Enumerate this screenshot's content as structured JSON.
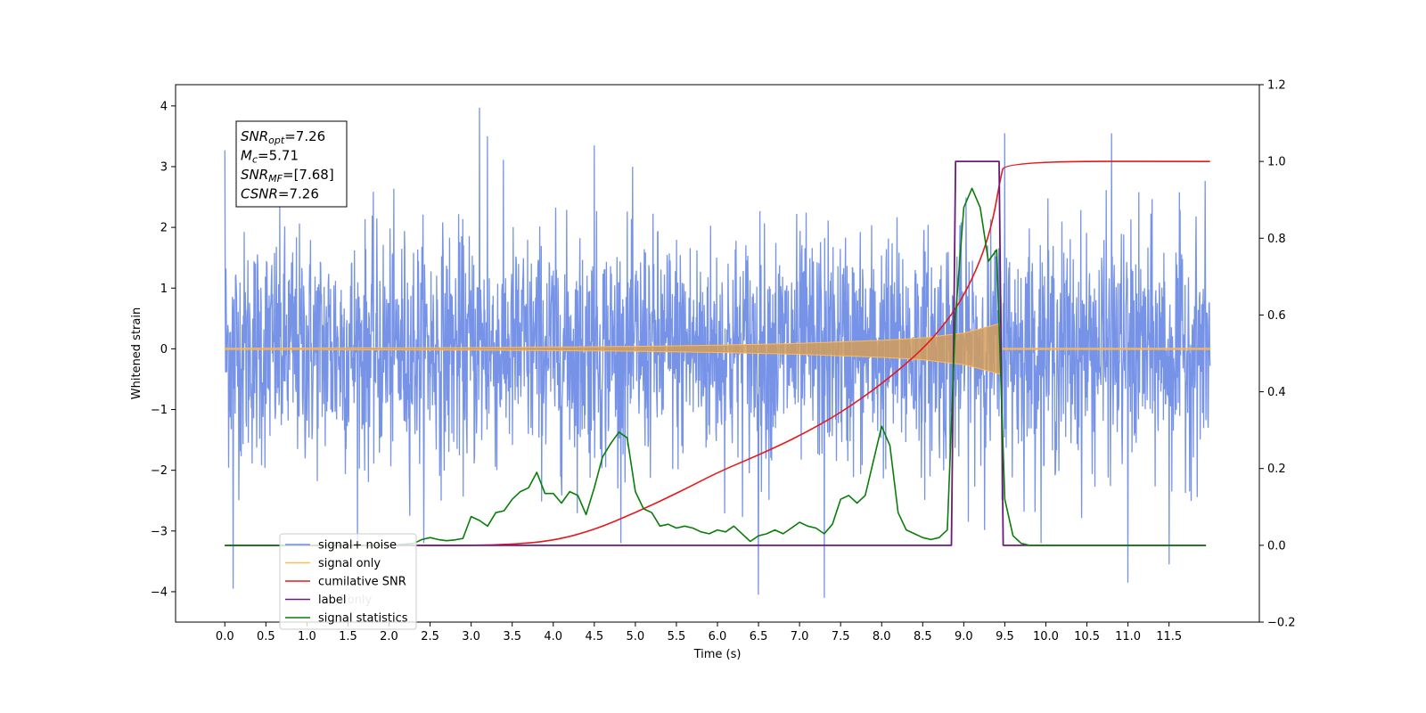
{
  "chart_data": {
    "type": "line",
    "title": "",
    "xlabel": "Time (s)",
    "ylabel": "Whitened strain",
    "xlim": [
      -0.6,
      12.6
    ],
    "ylim": [
      -4.5,
      4.35
    ],
    "y2lim": [
      -0.2,
      1.2
    ],
    "x_ticks": [
      0.0,
      0.5,
      1.0,
      1.5,
      2.0,
      2.5,
      3.0,
      3.5,
      4.0,
      4.5,
      5.0,
      5.5,
      6.0,
      6.5,
      7.0,
      7.5,
      8.0,
      8.5,
      9.0,
      9.5,
      10.0,
      10.5,
      11.0,
      11.5
    ],
    "x_tick_labels": [
      "0.0",
      "0.5",
      "1.0",
      "1.5",
      "2.0",
      "2.5",
      "3.0",
      "3.5",
      "4.0",
      "4.5",
      "5.0",
      "5.5",
      "6.0",
      "6.5",
      "7.0",
      "7.5",
      "8.0",
      "8.5",
      "9.0",
      "9.5",
      "10.0",
      "10.5",
      "11.0",
      "11.5"
    ],
    "y_ticks": [
      -4,
      -3,
      -2,
      -1,
      0,
      1,
      2,
      3,
      4
    ],
    "y_tick_labels": [
      "−4",
      "−3",
      "−2",
      "−1",
      "0",
      "1",
      "2",
      "3",
      "4"
    ],
    "y2_ticks": [
      -0.2,
      0.0,
      0.2,
      0.4,
      0.6,
      0.8,
      1.0,
      1.2
    ],
    "y2_tick_labels": [
      "−0.2",
      "0.0",
      "0.2",
      "0.4",
      "0.6",
      "0.8",
      "1.0",
      "1.2"
    ],
    "grid": false,
    "legend_position": "lower-left",
    "annotation": {
      "lines": [
        {
          "base": "SNR",
          "sub": "opt",
          "rest": "=7.26"
        },
        {
          "base": "M",
          "sub": "c",
          "rest": "=5.71"
        },
        {
          "base": "SNR",
          "sub": "MF",
          "rest": "=[7.68]"
        },
        {
          "base": "CSNR",
          "sub": "",
          "rest": "=7.26"
        }
      ]
    },
    "legend": [
      {
        "label": "signal+ noise",
        "color": "#6f8de6"
      },
      {
        "label": "signal only",
        "color": "#ffbb55"
      },
      {
        "label": "cumilative SNR",
        "color": "#e41a1c"
      },
      {
        "label": "label",
        "color": "#6a1b7a"
      },
      {
        "label": "signal statistics",
        "color": "#0a7d0a"
      }
    ],
    "hidden_legend_fragment": "l only",
    "series": [
      {
        "name": "signal+ noise",
        "axis": "left",
        "color": "#6f8de6",
        "x_range": [
          0,
          12
        ],
        "typical_amplitude": 1.5,
        "peaks": [
          [
            0.0,
            3.27
          ],
          [
            0.1,
            -3.95
          ],
          [
            3.1,
            3.97
          ],
          [
            3.2,
            3.5
          ],
          [
            4.5,
            3.35
          ],
          [
            6.5,
            -4.05
          ],
          [
            7.3,
            -4.1
          ],
          [
            9.5,
            3.55
          ],
          [
            10.8,
            3.55
          ],
          [
            11.0,
            -3.85
          ],
          [
            11.5,
            -3.55
          ]
        ]
      },
      {
        "name": "signal only",
        "axis": "left",
        "color": "#ffbb55",
        "x_range": [
          0,
          12
        ],
        "envelope": {
          "x": [
            0,
            3,
            5,
            6,
            7,
            8,
            8.5,
            9.0,
            9.2,
            9.45
          ],
          "y": [
            0.01,
            0.02,
            0.04,
            0.06,
            0.09,
            0.14,
            0.18,
            0.26,
            0.33,
            0.42
          ]
        }
      },
      {
        "name": "cumilative SNR",
        "axis": "right",
        "color": "#e41a1c",
        "x": [
          0,
          2.5,
          3.0,
          3.5,
          4.0,
          4.5,
          5.0,
          5.5,
          6.0,
          6.5,
          7.0,
          7.5,
          8.0,
          8.5,
          8.8,
          9.0,
          9.2,
          9.35,
          9.45,
          9.5,
          12.0
        ],
        "values": [
          0.0,
          0.0,
          0.0,
          0.002,
          0.012,
          0.04,
          0.085,
          0.135,
          0.19,
          0.235,
          0.285,
          0.345,
          0.42,
          0.51,
          0.585,
          0.65,
          0.74,
          0.84,
          0.96,
          1.0,
          1.0
        ]
      },
      {
        "name": "label",
        "axis": "right",
        "color": "#6a1b7a",
        "x": [
          0.0,
          8.85,
          8.9,
          9.43,
          9.48,
          11.95
        ],
        "values": [
          0.0,
          0.0,
          1.0,
          1.0,
          0.0,
          0.0
        ]
      },
      {
        "name": "signal statistics",
        "axis": "right",
        "color": "#0a7d0a",
        "x": [
          0.0,
          2.0,
          2.3,
          2.4,
          2.5,
          2.6,
          2.7,
          2.8,
          2.9,
          3.0,
          3.1,
          3.2,
          3.3,
          3.4,
          3.5,
          3.6,
          3.7,
          3.8,
          3.9,
          4.0,
          4.1,
          4.2,
          4.3,
          4.4,
          4.5,
          4.6,
          4.7,
          4.8,
          4.9,
          5.0,
          5.1,
          5.2,
          5.3,
          5.4,
          5.5,
          5.6,
          5.7,
          5.8,
          5.9,
          6.0,
          6.1,
          6.2,
          6.3,
          6.4,
          6.5,
          6.6,
          6.7,
          6.8,
          6.9,
          7.0,
          7.1,
          7.2,
          7.3,
          7.4,
          7.5,
          7.6,
          7.7,
          7.8,
          7.9,
          8.0,
          8.1,
          8.2,
          8.3,
          8.4,
          8.5,
          8.6,
          8.7,
          8.8,
          8.9,
          9.0,
          9.1,
          9.2,
          9.3,
          9.4,
          9.5,
          9.6,
          9.7,
          9.8,
          11.95
        ],
        "values": [
          0.0,
          0.0,
          0.005,
          0.015,
          0.02,
          0.015,
          0.012,
          0.014,
          0.018,
          0.075,
          0.065,
          0.05,
          0.085,
          0.09,
          0.12,
          0.14,
          0.15,
          0.19,
          0.135,
          0.135,
          0.11,
          0.14,
          0.13,
          0.08,
          0.15,
          0.23,
          0.265,
          0.295,
          0.28,
          0.14,
          0.095,
          0.085,
          0.05,
          0.055,
          0.045,
          0.05,
          0.045,
          0.035,
          0.03,
          0.04,
          0.035,
          0.05,
          0.03,
          0.01,
          0.025,
          0.03,
          0.04,
          0.03,
          0.045,
          0.06,
          0.05,
          0.045,
          0.03,
          0.055,
          0.12,
          0.13,
          0.11,
          0.13,
          0.22,
          0.31,
          0.26,
          0.085,
          0.04,
          0.03,
          0.02,
          0.015,
          0.02,
          0.04,
          0.6,
          0.88,
          0.93,
          0.88,
          0.74,
          0.77,
          0.12,
          0.025,
          0.005,
          0.0,
          0.0
        ]
      }
    ]
  }
}
